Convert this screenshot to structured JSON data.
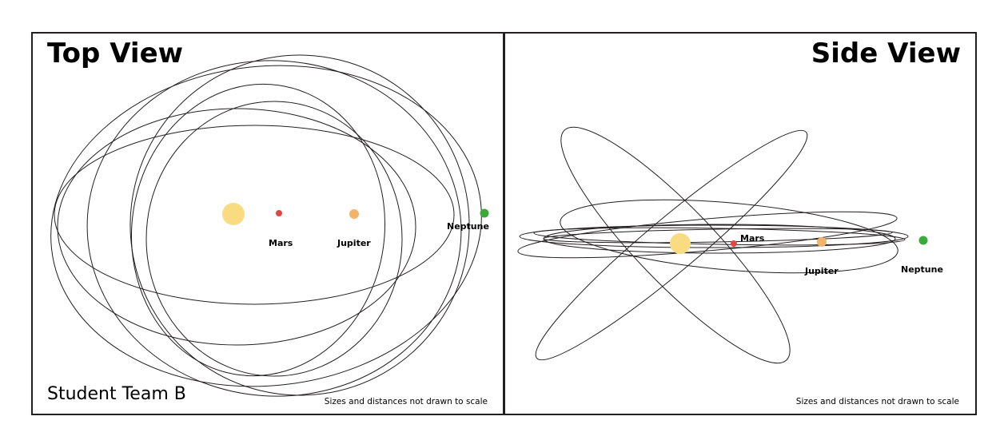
{
  "panels": {
    "top": {
      "title": "Top View",
      "team": "Student Team B",
      "note": "Sizes and distances not drawn to scale"
    },
    "side": {
      "title": "Side View",
      "note": "Sizes and distances not drawn to scale"
    }
  },
  "bodies": {
    "sun": {
      "color": "#f9db82"
    },
    "mars": {
      "label": "Mars",
      "color": "#e04848"
    },
    "jupiter": {
      "label": "Jupiter",
      "color": "#f2b46a"
    },
    "neptune": {
      "label": "Neptune",
      "color": "#3aaa3a"
    }
  }
}
